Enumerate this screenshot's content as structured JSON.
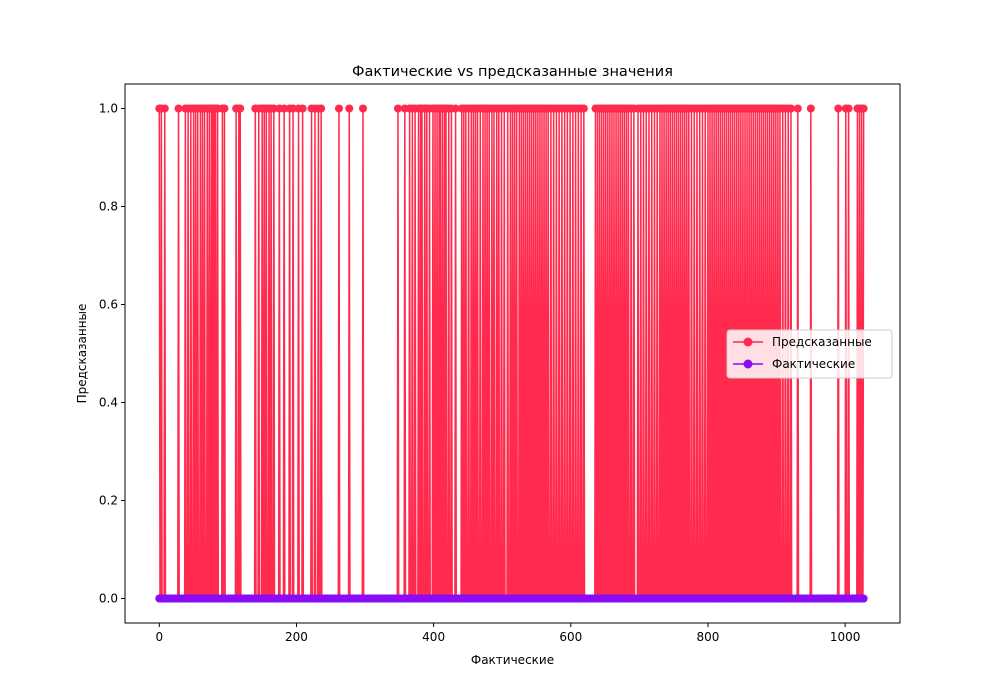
{
  "chart_data": {
    "type": "line",
    "title": "Фактические vs предсказанные значения",
    "xlabel": "Фактические",
    "ylabel": "Предсказанные",
    "xlim": [
      -50,
      1080
    ],
    "ylim": [
      -0.05,
      1.05
    ],
    "xticks": [
      0,
      200,
      400,
      600,
      800,
      1000
    ],
    "yticks": [
      0.0,
      0.2,
      0.4,
      0.6,
      0.8,
      1.0
    ],
    "xtick_labels": [
      "0",
      "200",
      "400",
      "600",
      "800",
      "1000"
    ],
    "ytick_labels": [
      "0.0",
      "0.2",
      "0.4",
      "0.6",
      "0.8",
      "1.0"
    ],
    "grid": false,
    "legend_position": "center-right",
    "n_points": 1028,
    "series": [
      {
        "name": "Предсказанные",
        "color": "#ff2a4d",
        "marker": "circle",
        "ones_at": [
          0,
          3,
          8,
          28,
          38,
          42,
          46,
          50,
          53,
          56,
          60,
          63,
          66,
          70,
          73,
          76,
          78,
          80,
          82,
          85,
          92,
          95,
          112,
          116,
          118,
          140,
          145,
          150,
          153,
          156,
          160,
          163,
          167,
          175,
          182,
          190,
          195,
          203,
          209,
          222,
          227,
          232,
          236,
          262,
          277,
          297,
          348,
          358,
          365,
          369,
          373,
          378,
          381,
          383,
          387,
          390,
          394,
          399,
          402,
          405,
          408,
          410,
          413,
          416,
          418,
          422,
          426,
          432,
          441,
          444,
          447,
          451,
          455,
          458,
          461,
          464,
          468,
          472,
          475,
          478,
          481,
          485,
          488,
          492,
          495,
          499,
          503,
          508,
          512,
          515,
          518,
          521,
          525,
          528,
          531,
          534,
          537,
          540,
          543,
          546,
          549,
          552,
          555,
          558,
          561,
          564,
          567,
          571,
          575,
          579,
          583,
          587,
          591,
          595,
          599,
          603,
          607,
          611,
          615,
          619,
          636,
          639,
          642,
          645,
          648,
          651,
          654,
          657,
          660,
          663,
          666,
          669,
          672,
          675,
          678,
          681,
          684,
          688,
          692,
          698,
          702,
          706,
          710,
          714,
          718,
          722,
          726,
          730,
          733,
          736,
          739,
          742,
          745,
          748,
          751,
          754,
          757,
          760,
          763,
          766,
          769,
          772,
          776,
          780,
          784,
          788,
          792,
          796,
          800,
          803,
          806,
          809,
          812,
          815,
          818,
          821,
          824,
          827,
          830,
          833,
          836,
          839,
          842,
          845,
          848,
          851,
          854,
          857,
          860,
          863,
          866,
          869,
          872,
          875,
          878,
          881,
          884,
          887,
          890,
          893,
          896,
          899,
          902,
          905,
          909,
          913,
          917,
          921,
          931,
          950,
          990,
          1001,
          1005,
          1018,
          1021,
          1024,
          1027
        ]
      },
      {
        "name": "Фактические",
        "color": "#8a0cf4",
        "marker": "circle",
        "constant_value": 0
      }
    ]
  }
}
